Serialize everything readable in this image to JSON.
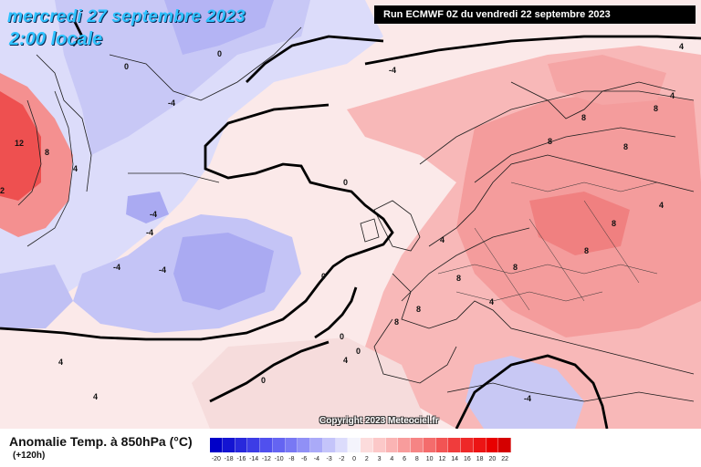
{
  "title": {
    "date": "mercredi 27 septembre 2023",
    "time": "2:00 locale"
  },
  "run_info": "Run ECMWF 0Z du vendredi 22 septembre 2023",
  "copyright": "Copyright 2023 Meteociel.fr",
  "legend": {
    "variable": "Anomalie Temp. à 850hPa (°C)",
    "lead_time": "(+120h)",
    "ticks": [
      "-20",
      "-18",
      "-16",
      "-14",
      "-12",
      "-10",
      "-8",
      "-6",
      "-4",
      "-3",
      "-2",
      "0",
      "2",
      "3",
      "4",
      "6",
      "8",
      "10",
      "12",
      "14",
      "16",
      "18",
      "20",
      "22"
    ],
    "colors": [
      "#0000c8",
      "#1414d2",
      "#2828dc",
      "#3c3ce6",
      "#5050ee",
      "#6464f2",
      "#7878f4",
      "#9090f6",
      "#aaaaf8",
      "#c4c4fa",
      "#dcdcfc",
      "#f4f4fc",
      "#fcdcdc",
      "#fcc8c8",
      "#fab4b4",
      "#f89c9c",
      "#f68484",
      "#f46c6c",
      "#f25454",
      "#f03c3c",
      "#ee2828",
      "#ec1414",
      "#e80000",
      "#d40000"
    ]
  },
  "contour_labels": [
    {
      "text": "0",
      "id": "c1"
    },
    {
      "text": "0",
      "id": "c2"
    },
    {
      "text": "-4",
      "id": "c3"
    },
    {
      "text": "-4",
      "id": "c4"
    },
    {
      "text": "12",
      "id": "c5"
    },
    {
      "text": "8",
      "id": "c6"
    },
    {
      "text": "4",
      "id": "c7"
    },
    {
      "text": "2",
      "id": "c8"
    },
    {
      "text": "-4",
      "id": "c9"
    },
    {
      "text": "-4",
      "id": "c10"
    },
    {
      "text": "-4",
      "id": "c11"
    },
    {
      "text": "0",
      "id": "c12"
    },
    {
      "text": "4",
      "id": "c13"
    },
    {
      "text": "4",
      "id": "c14"
    },
    {
      "text": "8",
      "id": "c15"
    },
    {
      "text": "8",
      "id": "c16"
    },
    {
      "text": "8",
      "id": "c17"
    },
    {
      "text": "8",
      "id": "c18"
    },
    {
      "text": "8",
      "id": "c19"
    },
    {
      "text": "8",
      "id": "c20"
    },
    {
      "text": "8",
      "id": "c21"
    },
    {
      "text": "8",
      "id": "c22"
    },
    {
      "text": "4",
      "id": "c23"
    },
    {
      "text": "0",
      "id": "c24"
    },
    {
      "text": "0",
      "id": "c25"
    },
    {
      "text": "0",
      "id": "c26"
    },
    {
      "text": "4",
      "id": "c27"
    },
    {
      "text": "4",
      "id": "c28"
    },
    {
      "text": "-4",
      "id": "c29"
    },
    {
      "text": "4",
      "id": "c30"
    },
    {
      "text": "8",
      "id": "c31"
    },
    {
      "text": "8",
      "id": "c32"
    },
    {
      "text": "4",
      "id": "c33"
    },
    {
      "text": "0",
      "id": "c34"
    },
    {
      "text": "4",
      "id": "c35"
    },
    {
      "text": "-4",
      "id": "c36"
    }
  ]
}
